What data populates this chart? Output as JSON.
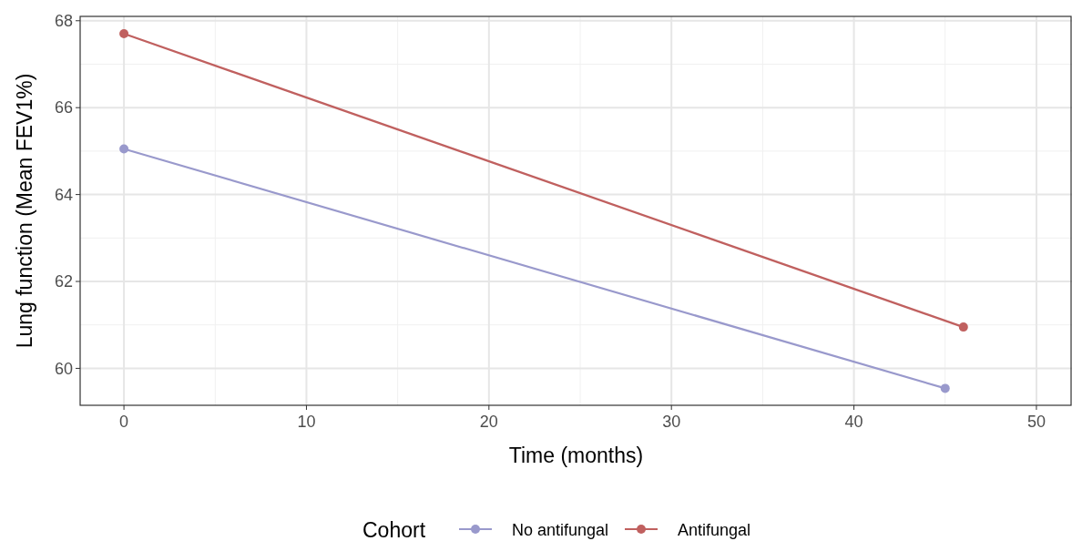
{
  "chart_data": {
    "type": "line",
    "xlabel": "Time (months)",
    "ylabel": "Lung function (Mean FEV1%)",
    "legend_title": "Cohort",
    "legend": "bottom",
    "grid": true,
    "marker": "circle",
    "line_style": "solid",
    "xlim": [
      -2.4,
      51.9
    ],
    "xticks": [
      0,
      10,
      20,
      30,
      40,
      50
    ],
    "ylim": [
      59.15,
      68.1
    ],
    "yticks": [
      60,
      62,
      64,
      66,
      68
    ],
    "series": [
      {
        "name": "No antifungal",
        "color": "#9999cc",
        "x": [
          0,
          45
        ],
        "values": [
          65.05,
          59.54
        ]
      },
      {
        "name": "Antifungal",
        "color": "#c0605f",
        "x": [
          0,
          46
        ],
        "values": [
          67.7,
          60.95
        ]
      }
    ]
  }
}
